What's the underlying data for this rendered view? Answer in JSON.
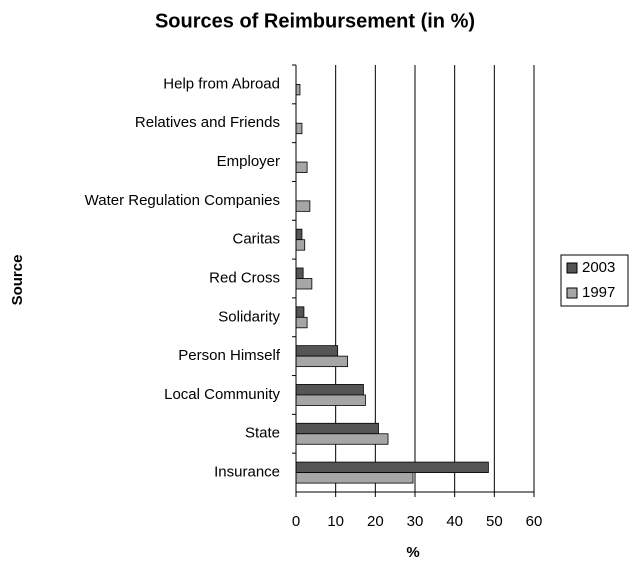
{
  "chart_data": {
    "type": "hbar",
    "title": "Sources of Reimbursement (in %)",
    "x_label": "%",
    "y_label": "Source",
    "categories": [
      "Help from Abroad",
      "Relatives and Friends",
      "Employer",
      "Water Regulation Companies",
      "Caritas",
      "Red Cross",
      "Solidarity",
      "Person Himself",
      "Local Community",
      "State",
      "Insurance"
    ],
    "series": [
      {
        "name": "2003",
        "color": "#555555",
        "values": [
          0,
          0,
          0,
          0,
          1.5,
          1.8,
          2,
          10.5,
          17,
          20.8,
          48.5
        ]
      },
      {
        "name": "1997",
        "color": "#a6a6a6",
        "values": [
          1,
          1.5,
          2.8,
          3.5,
          2.2,
          4,
          2.8,
          13,
          17.5,
          23.2,
          29.5
        ]
      }
    ],
    "xlim": [
      0,
      60
    ],
    "xticks": [
      0,
      10,
      20,
      30,
      40,
      50,
      60
    ],
    "grid": true,
    "legend": "right"
  }
}
